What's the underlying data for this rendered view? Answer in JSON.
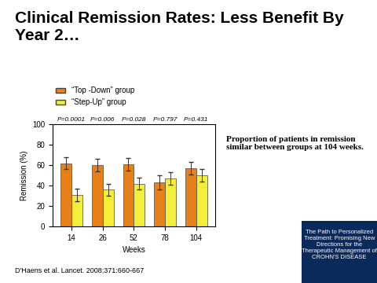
{
  "chart_data": {
    "type": "bar",
    "title": "Clinical Remission Rates: Less Benefit By Year 2…",
    "x_label": "Weeks",
    "y_label": "Remission (%)",
    "categories": [
      "14",
      "26",
      "52",
      "78",
      "104"
    ],
    "series": [
      {
        "name": "“Top -Down” group",
        "color": "#e8801a",
        "values": [
          62,
          60,
          61,
          43,
          57
        ],
        "errors": [
          6,
          6,
          6,
          7,
          6
        ]
      },
      {
        "name": "“Step-Up” group",
        "color": "#f2ee3a",
        "values": [
          31,
          36,
          42,
          47,
          50
        ],
        "errors": [
          6,
          6,
          6,
          6,
          6
        ]
      }
    ],
    "p_values": [
      "P=0.0001",
      "P=0.006",
      "P=0.028",
      "P=0.797",
      "P=0.431"
    ],
    "note": "Proportion of patients in remission similar between groups at 104 weeks.",
    "source": "D'Haens et al. Lancet. 2008;371:660-667",
    "panel_text": "The Path to Personalized Treatment: Promising New Directions for the Therapeutic Management of CROHN'S DISEASE",
    "ylim": [
      0,
      100
    ],
    "yticks": [
      0,
      20,
      40,
      60,
      80,
      100
    ],
    "legend": "upper left",
    "grid": false
  }
}
